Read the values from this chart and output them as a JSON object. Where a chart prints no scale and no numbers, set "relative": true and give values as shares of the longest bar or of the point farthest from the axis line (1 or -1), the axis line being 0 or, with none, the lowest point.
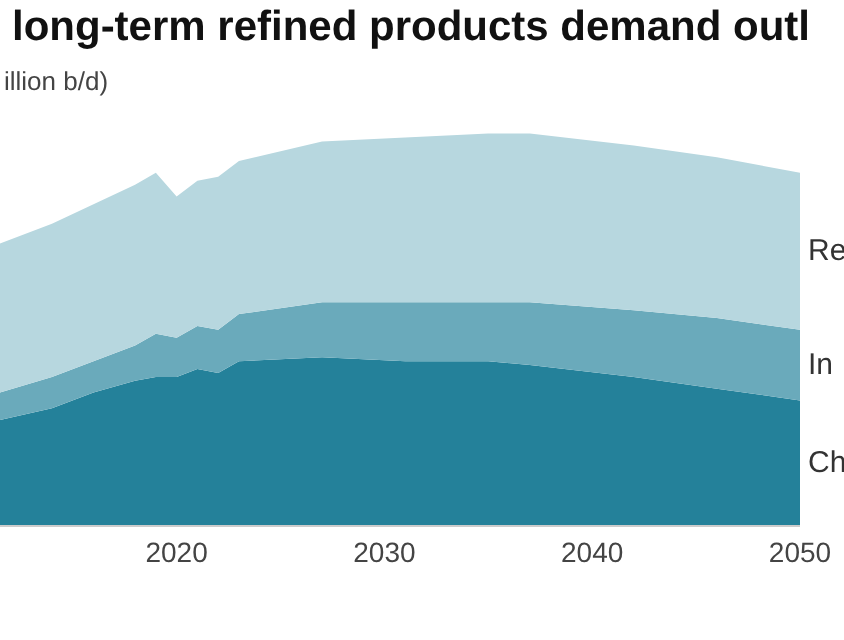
{
  "chart_data": {
    "type": "area",
    "title": "long-term refined products demand outl",
    "ylabel": "illion b/d)",
    "relative": true,
    "stacked": true,
    "x": [
      2011.5,
      2014,
      2016,
      2018,
      2019,
      2020,
      2021,
      2022,
      2023,
      2027,
      2031,
      2035,
      2037,
      2042,
      2046,
      2050
    ],
    "xlim": [
      2011.5,
      2050
    ],
    "xticks": [
      2020,
      2030,
      2040,
      2050
    ],
    "series": [
      {
        "name": "Ch",
        "color": "#24819a",
        "values": [
          0.27,
          0.3,
          0.34,
          0.37,
          0.38,
          0.38,
          0.4,
          0.39,
          0.42,
          0.43,
          0.42,
          0.42,
          0.41,
          0.38,
          0.35,
          0.32
        ]
      },
      {
        "name": "In",
        "color": "#6aaabb",
        "values": [
          0.07,
          0.08,
          0.08,
          0.09,
          0.11,
          0.1,
          0.11,
          0.11,
          0.12,
          0.14,
          0.15,
          0.15,
          0.16,
          0.17,
          0.18,
          0.18
        ]
      },
      {
        "name": "Re",
        "color": "#b7d7df",
        "values": [
          0.38,
          0.39,
          0.4,
          0.41,
          0.41,
          0.36,
          0.37,
          0.39,
          0.39,
          0.41,
          0.42,
          0.43,
          0.43,
          0.42,
          0.41,
          0.4
        ]
      }
    ],
    "grid": false
  }
}
